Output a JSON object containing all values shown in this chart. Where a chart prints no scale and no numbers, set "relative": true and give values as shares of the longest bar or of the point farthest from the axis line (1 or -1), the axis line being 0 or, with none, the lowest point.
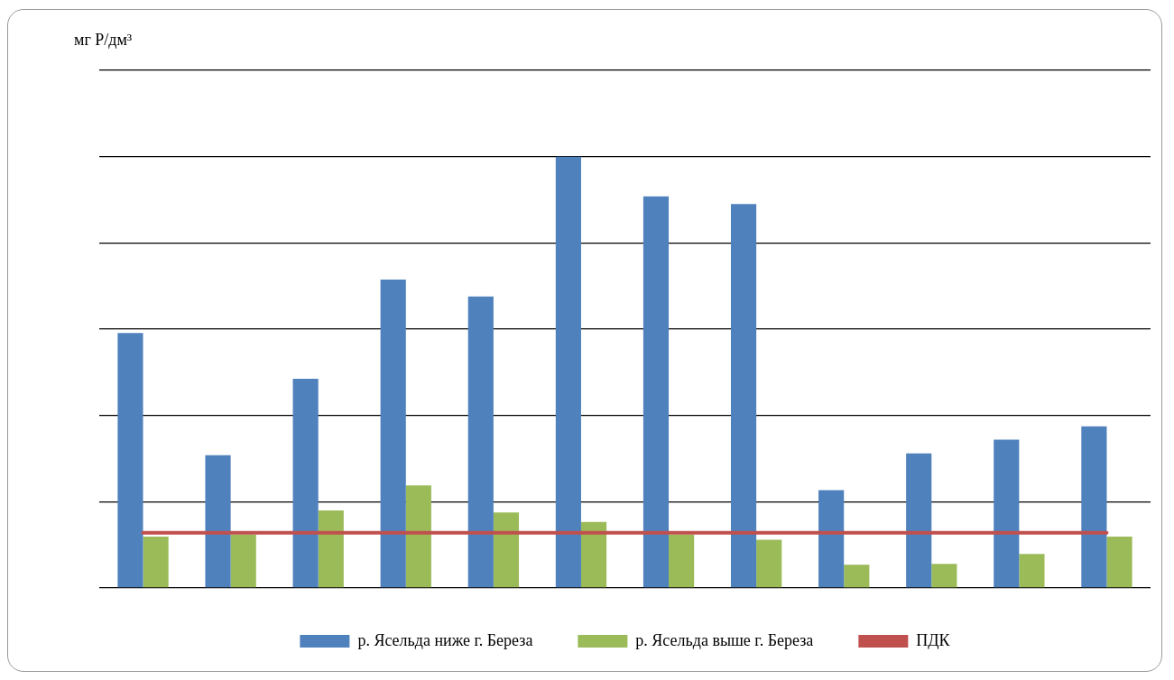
{
  "chart_data": {
    "type": "bar",
    "annotations": [
      "мг Р/дм³"
    ],
    "relative": true,
    "grid": "y",
    "legend": "bottom",
    "categories": [
      null,
      null,
      null,
      null,
      null,
      null,
      null,
      null,
      null,
      null,
      null,
      null
    ],
    "series": [
      {
        "name": "р. Ясельда ниже г. Береза",
        "color": "#4f81bd",
        "values": [
          0.591,
          0.308,
          0.485,
          0.715,
          0.676,
          1,
          0.908,
          0.89,
          0.227,
          0.312,
          0.344,
          0.375
        ]
      },
      {
        "name": "р. Ясельда выше г. Береза",
        "color": "#9bbb59",
        "values": [
          0.119,
          0.124,
          0.18,
          0.238,
          0.175,
          0.153,
          0.124,
          0.112,
          0.054,
          0.056,
          0.079,
          0.119
        ]
      }
    ],
    "ref_lines": [
      {
        "axis": "y",
        "value": 0.128,
        "label": "ПДК",
        "color": "#c0504d"
      }
    ]
  }
}
